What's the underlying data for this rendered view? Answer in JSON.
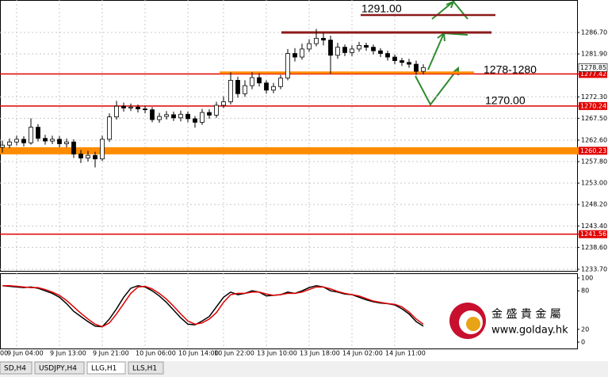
{
  "tabs": [
    {
      "label": "SD,H4",
      "active": false
    },
    {
      "label": "USDJPY,H4",
      "active": false
    },
    {
      "label": "LLG,H1",
      "active": true
    },
    {
      "label": "LLS,H1",
      "active": false
    }
  ],
  "logo": {
    "name": "金 盛 貴 金 屬",
    "url": "www.golday.hk"
  },
  "chart_data": [
    {
      "type": "candlestick",
      "categories": [
        "00",
        null,
        "9 Jun 04:00",
        null,
        null,
        null,
        null,
        null,
        "9 Jun 13:00",
        null,
        null,
        null,
        null,
        null,
        "9 Jun 21:00",
        null,
        null,
        null,
        null,
        null,
        "10 Jun 06:00",
        null,
        null,
        null,
        null,
        null,
        "10 Jun 14:00",
        null,
        null,
        null,
        null,
        "10 Jun 22:00",
        null,
        null,
        null,
        null,
        null,
        "13 Jun 10:00",
        null,
        null,
        null,
        null,
        null,
        "13 Jun 18:00",
        null,
        null,
        null,
        null,
        null,
        "14 Jun 02:00",
        null,
        null,
        null,
        null,
        null,
        "14 Jun 11:00",
        null,
        null,
        null,
        null
      ],
      "open": [
        1261.0,
        1261.5,
        1262.2,
        1262.8,
        1262.0,
        1265.5,
        1263.0,
        1262.4,
        1262.8,
        1261.8,
        1262.2,
        1259.5,
        1258.6,
        1259.2,
        1258.4,
        1262.8,
        1267.8,
        1270.2,
        1269.8,
        1270.0,
        1269.6,
        1269.4,
        1267.2,
        1267.9,
        1268.3,
        1267.6,
        1268.4,
        1267.4,
        1266.6,
        1268.8,
        1268.2,
        1270.4,
        1271.2,
        1276.0,
        1273.0,
        1274.8,
        1276.6,
        1275.4,
        1273.8,
        1274.6,
        1276.5,
        1282.0,
        1281.2,
        1283.0,
        1284.2,
        1285.4,
        1285.0,
        1281.6,
        1283.4,
        1282.2,
        1283.0,
        1283.8,
        1283.4,
        1282.6,
        1282.0,
        1281.2,
        1280.4,
        1280.0,
        1279.6,
        1278.0
      ],
      "high": [
        1262.5,
        1263.0,
        1263.6,
        1263.5,
        1267.5,
        1266.2,
        1263.8,
        1263.6,
        1263.5,
        1263.0,
        1262.8,
        1260.4,
        1260.2,
        1260.0,
        1263.6,
        1268.6,
        1271.4,
        1271.0,
        1270.8,
        1270.6,
        1270.3,
        1270.0,
        1268.7,
        1269.1,
        1269.0,
        1269.2,
        1269.0,
        1268.0,
        1269.6,
        1269.5,
        1271.2,
        1272.4,
        1277.8,
        1276.8,
        1276.0,
        1277.8,
        1277.6,
        1276.0,
        1275.4,
        1277.2,
        1283.0,
        1283.2,
        1284.2,
        1285.2,
        1287.5,
        1286.6,
        1286.0,
        1284.4,
        1284.0,
        1283.8,
        1284.6,
        1284.4,
        1284.0,
        1283.2,
        1282.6,
        1281.8,
        1281.0,
        1280.8,
        1280.4,
        1279.6
      ],
      "low": [
        1259.8,
        1260.8,
        1261.4,
        1261.2,
        1261.6,
        1262.3,
        1261.6,
        1261.7,
        1261.0,
        1261.0,
        1258.6,
        1257.5,
        1257.8,
        1256.5,
        1257.9,
        1262.2,
        1267.2,
        1269.0,
        1269.1,
        1268.8,
        1268.6,
        1266.6,
        1266.5,
        1267.2,
        1266.9,
        1266.8,
        1266.6,
        1265.4,
        1266.0,
        1267.4,
        1267.6,
        1269.8,
        1270.6,
        1272.1,
        1272.3,
        1274.0,
        1274.6,
        1273.0,
        1273.1,
        1274.0,
        1276.0,
        1280.2,
        1280.6,
        1282.4,
        1283.6,
        1283.8,
        1277.5,
        1280.8,
        1281.4,
        1281.4,
        1282.4,
        1282.6,
        1281.8,
        1281.2,
        1280.4,
        1279.6,
        1279.2,
        1278.8,
        1277.2,
        1277.3
      ],
      "close": [
        1261.5,
        1262.2,
        1262.8,
        1262.0,
        1265.5,
        1263.0,
        1262.4,
        1262.8,
        1261.8,
        1262.2,
        1259.5,
        1258.6,
        1259.2,
        1258.4,
        1262.8,
        1267.8,
        1270.2,
        1269.8,
        1270.0,
        1269.6,
        1269.4,
        1267.2,
        1267.9,
        1268.3,
        1267.6,
        1268.4,
        1267.4,
        1266.6,
        1268.8,
        1268.2,
        1270.4,
        1271.2,
        1276.0,
        1273.0,
        1274.8,
        1276.6,
        1275.4,
        1273.8,
        1274.6,
        1276.5,
        1282.0,
        1281.2,
        1283.0,
        1284.2,
        1285.4,
        1285.0,
        1281.6,
        1283.4,
        1282.2,
        1283.0,
        1283.8,
        1283.4,
        1282.6,
        1282.0,
        1281.2,
        1280.4,
        1280.0,
        1279.6,
        1278.0,
        1278.85
      ],
      "up_color": "#ffffff",
      "down_color": "#000000",
      "line_color": "#000000",
      "ylim": [
        1233.35,
        1293.97
      ],
      "yticks": [
        {
          "value": 1286.7,
          "label": "1286.70"
        },
        {
          "value": 1281.9,
          "label": "1281.90"
        },
        {
          "value": 1272.3,
          "label": "1272.30"
        },
        {
          "value": 1267.5,
          "label": "1267.50"
        },
        {
          "value": 1262.6,
          "label": "1262.60"
        },
        {
          "value": 1257.8,
          "label": "1257.80"
        },
        {
          "value": 1253.0,
          "label": "1253.00"
        },
        {
          "value": 1248.2,
          "label": "1248.20"
        },
        {
          "value": 1243.4,
          "label": "1243.40"
        },
        {
          "value": 1238.6,
          "label": "1238.60"
        },
        {
          "value": 1233.7,
          "label": "1233.70"
        }
      ],
      "grid": true,
      "last": {
        "value": 1278.85,
        "label": "1278.85"
      },
      "levels": [
        {
          "value": 1277.42,
          "label": "1277.42",
          "color": "#e00000",
          "width": 1.5
        },
        {
          "value": 1270.24,
          "label": "1270.24",
          "color": "#e00000",
          "width": 1.5
        },
        {
          "value": 1260.23,
          "label": "1260.23",
          "color": "#ff8c00",
          "width": 9
        },
        {
          "value": 1241.56,
          "label": "1241.56",
          "color": "#e00000",
          "width": 1.5
        }
      ],
      "segments": [
        {
          "value": 1290.6,
          "color": "#8b1a1a",
          "width": 2.5
        },
        {
          "value": 1286.7,
          "color": "#8b1a1a",
          "width": 3
        },
        {
          "value": 1277.7,
          "color": "#ff8c00",
          "width": 3
        }
      ],
      "annotations": [
        "1291.00",
        "1278-1280",
        "1270.00"
      ]
    },
    {
      "type": "line",
      "series": [
        {
          "color": "#000000",
          "values": [
            88,
            87,
            86,
            85,
            86,
            84,
            80,
            76,
            70,
            60,
            48,
            40,
            32,
            25,
            24,
            36,
            52,
            70,
            84,
            88,
            86,
            80,
            72,
            62,
            50,
            38,
            28,
            27,
            33,
            40,
            55,
            70,
            78,
            74,
            76,
            80,
            78,
            72,
            73,
            74,
            78,
            76,
            80,
            85,
            88,
            86,
            80,
            78,
            75,
            74,
            70,
            66,
            63,
            61,
            60,
            58,
            52,
            44,
            32,
            25
          ]
        },
        {
          "color": "#e00000",
          "values": [
            88,
            88,
            87,
            86,
            85,
            85,
            82,
            78,
            73,
            65,
            55,
            45,
            36,
            28,
            24,
            30,
            44,
            60,
            76,
            86,
            87,
            83,
            76,
            67,
            56,
            44,
            33,
            28,
            30,
            36,
            46,
            62,
            74,
            76,
            76,
            78,
            78,
            75,
            73,
            74,
            76,
            76,
            78,
            82,
            86,
            86,
            83,
            79,
            76,
            74,
            72,
            68,
            64,
            62,
            60,
            59,
            55,
            47,
            36,
            28
          ]
        }
      ],
      "ylim": [
        -9.9,
        107.4
      ],
      "yticks": [
        100,
        80,
        20,
        0
      ]
    }
  ]
}
